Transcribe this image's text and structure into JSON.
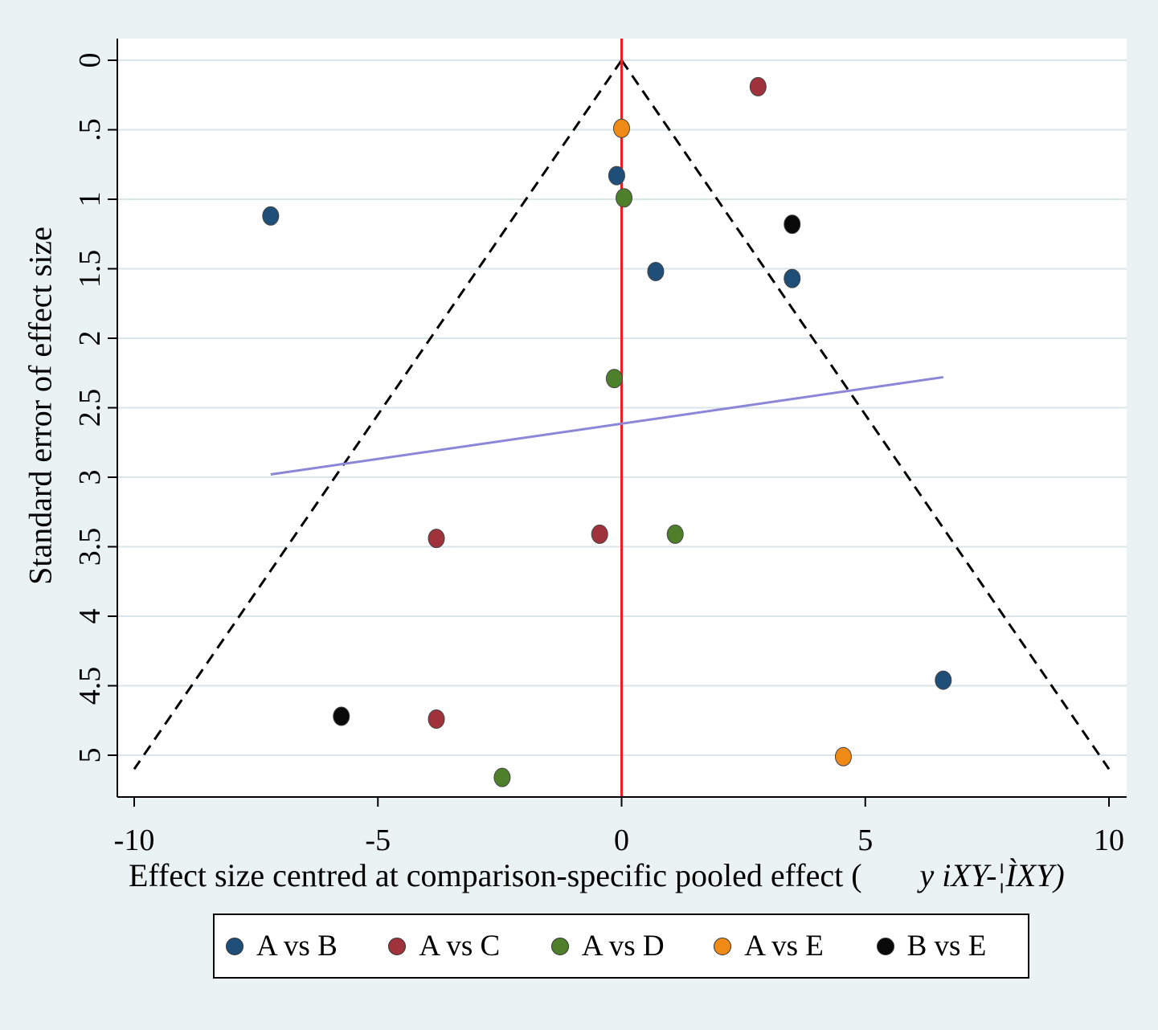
{
  "chart_data": {
    "type": "scatter",
    "xlabel": "Effect size centred at comparison-specific pooled effect (",
    "xlabel_math": "y iXY-¦ÌXY)",
    "ylabel": "Standard error of effect size",
    "xlim": [
      -10,
      10
    ],
    "ylim": [
      0,
      5.3
    ],
    "y_reversed": true,
    "xticks": [
      "-10",
      "-5",
      "0",
      "5",
      "10"
    ],
    "xtick_values": [
      -10,
      -5,
      0,
      5,
      10
    ],
    "yticks": [
      "0",
      ".5",
      "1",
      "1.5",
      "2",
      "2.5",
      "3",
      "3.5",
      "4",
      "4.5",
      "5"
    ],
    "ytick_values": [
      0,
      0.5,
      1,
      1.5,
      2,
      2.5,
      3,
      3.5,
      4,
      4.5,
      5
    ],
    "grid": true,
    "legend_position": "bottom",
    "reference_line": {
      "x": 0,
      "color": "#e8201e"
    },
    "funnel": {
      "apex": [
        0,
        0
      ],
      "left_base": [
        -10,
        5.1
      ],
      "right_base": [
        10,
        5.1
      ]
    },
    "regression_line": {
      "x": [
        -7.2,
        6.6
      ],
      "y": [
        2.98,
        2.28
      ],
      "color": "#8b86d8"
    },
    "series": [
      {
        "name": "A vs B",
        "color": "#1f4e79",
        "points": [
          [
            -7.2,
            1.12
          ],
          [
            -0.1,
            0.83
          ],
          [
            0.7,
            1.52
          ],
          [
            3.5,
            1.57
          ],
          [
            6.6,
            4.46
          ]
        ]
      },
      {
        "name": "A vs C",
        "color": "#a0323b",
        "points": [
          [
            2.8,
            0.19
          ],
          [
            -3.8,
            3.44
          ],
          [
            -0.45,
            3.41
          ],
          [
            -3.8,
            4.74
          ]
        ]
      },
      {
        "name": "A vs D",
        "color": "#4e7f2a",
        "points": [
          [
            0.05,
            0.99
          ],
          [
            -0.15,
            2.29
          ],
          [
            1.1,
            3.41
          ],
          [
            -2.45,
            5.16
          ]
        ]
      },
      {
        "name": "A vs E",
        "color": "#f08a16",
        "points": [
          [
            0.0,
            0.49
          ],
          [
            4.55,
            5.01
          ]
        ]
      },
      {
        "name": "B vs E",
        "color": "#0a0a0a",
        "points": [
          [
            3.5,
            1.18
          ],
          [
            -5.75,
            4.72
          ]
        ]
      }
    ]
  }
}
